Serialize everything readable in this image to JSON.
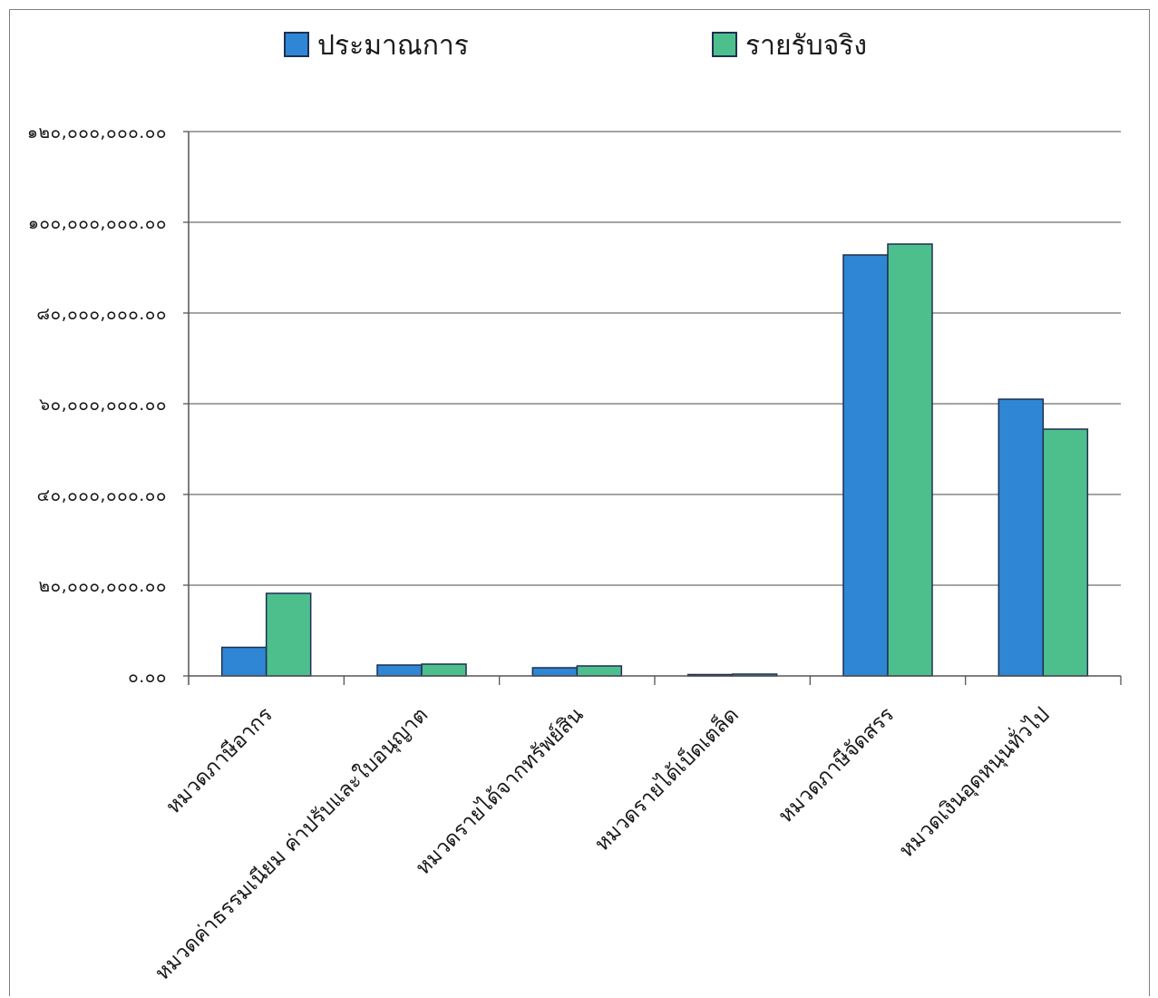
{
  "chart_data": {
    "type": "bar",
    "categories": [
      "หมวดภาษีอากร",
      "หมวดค่าธรรมเนียม ค่าปรับและใบอนุญาต",
      "หมวดรายได้จากทรัพย์สิน",
      "หมวดรายได้เบ็ดเตล็ด",
      "หมวดภาษีจัดสรร",
      "หมวดเงินอุดหนุนทั่วไป"
    ],
    "series": [
      {
        "name": "ประมาณการ",
        "color": "#2f86d4",
        "values": [
          6300000,
          2400000,
          1800000,
          300000,
          92800000,
          61000000
        ]
      },
      {
        "name": "รายรับจริง",
        "color": "#4dbf8d",
        "values": [
          18200000,
          2600000,
          2200000,
          400000,
          95200000,
          54400000
        ]
      }
    ],
    "ylim": [
      0,
      120000000
    ],
    "yticks": [
      0,
      20000000,
      40000000,
      60000000,
      80000000,
      100000000,
      120000000
    ],
    "ytick_labels": [
      "๐.๐๐",
      "๒๐,๐๐๐,๐๐๐.๐๐",
      "๔๐,๐๐๐,๐๐๐.๐๐",
      "๖๐,๐๐๐,๐๐๐.๐๐",
      "๘๐,๐๐๐,๐๐๐.๐๐",
      "๑๐๐,๐๐๐,๐๐๐.๐๐",
      "๑๒๐,๐๐๐,๐๐๐.๐๐"
    ],
    "grid": true,
    "legend_position": "top"
  }
}
